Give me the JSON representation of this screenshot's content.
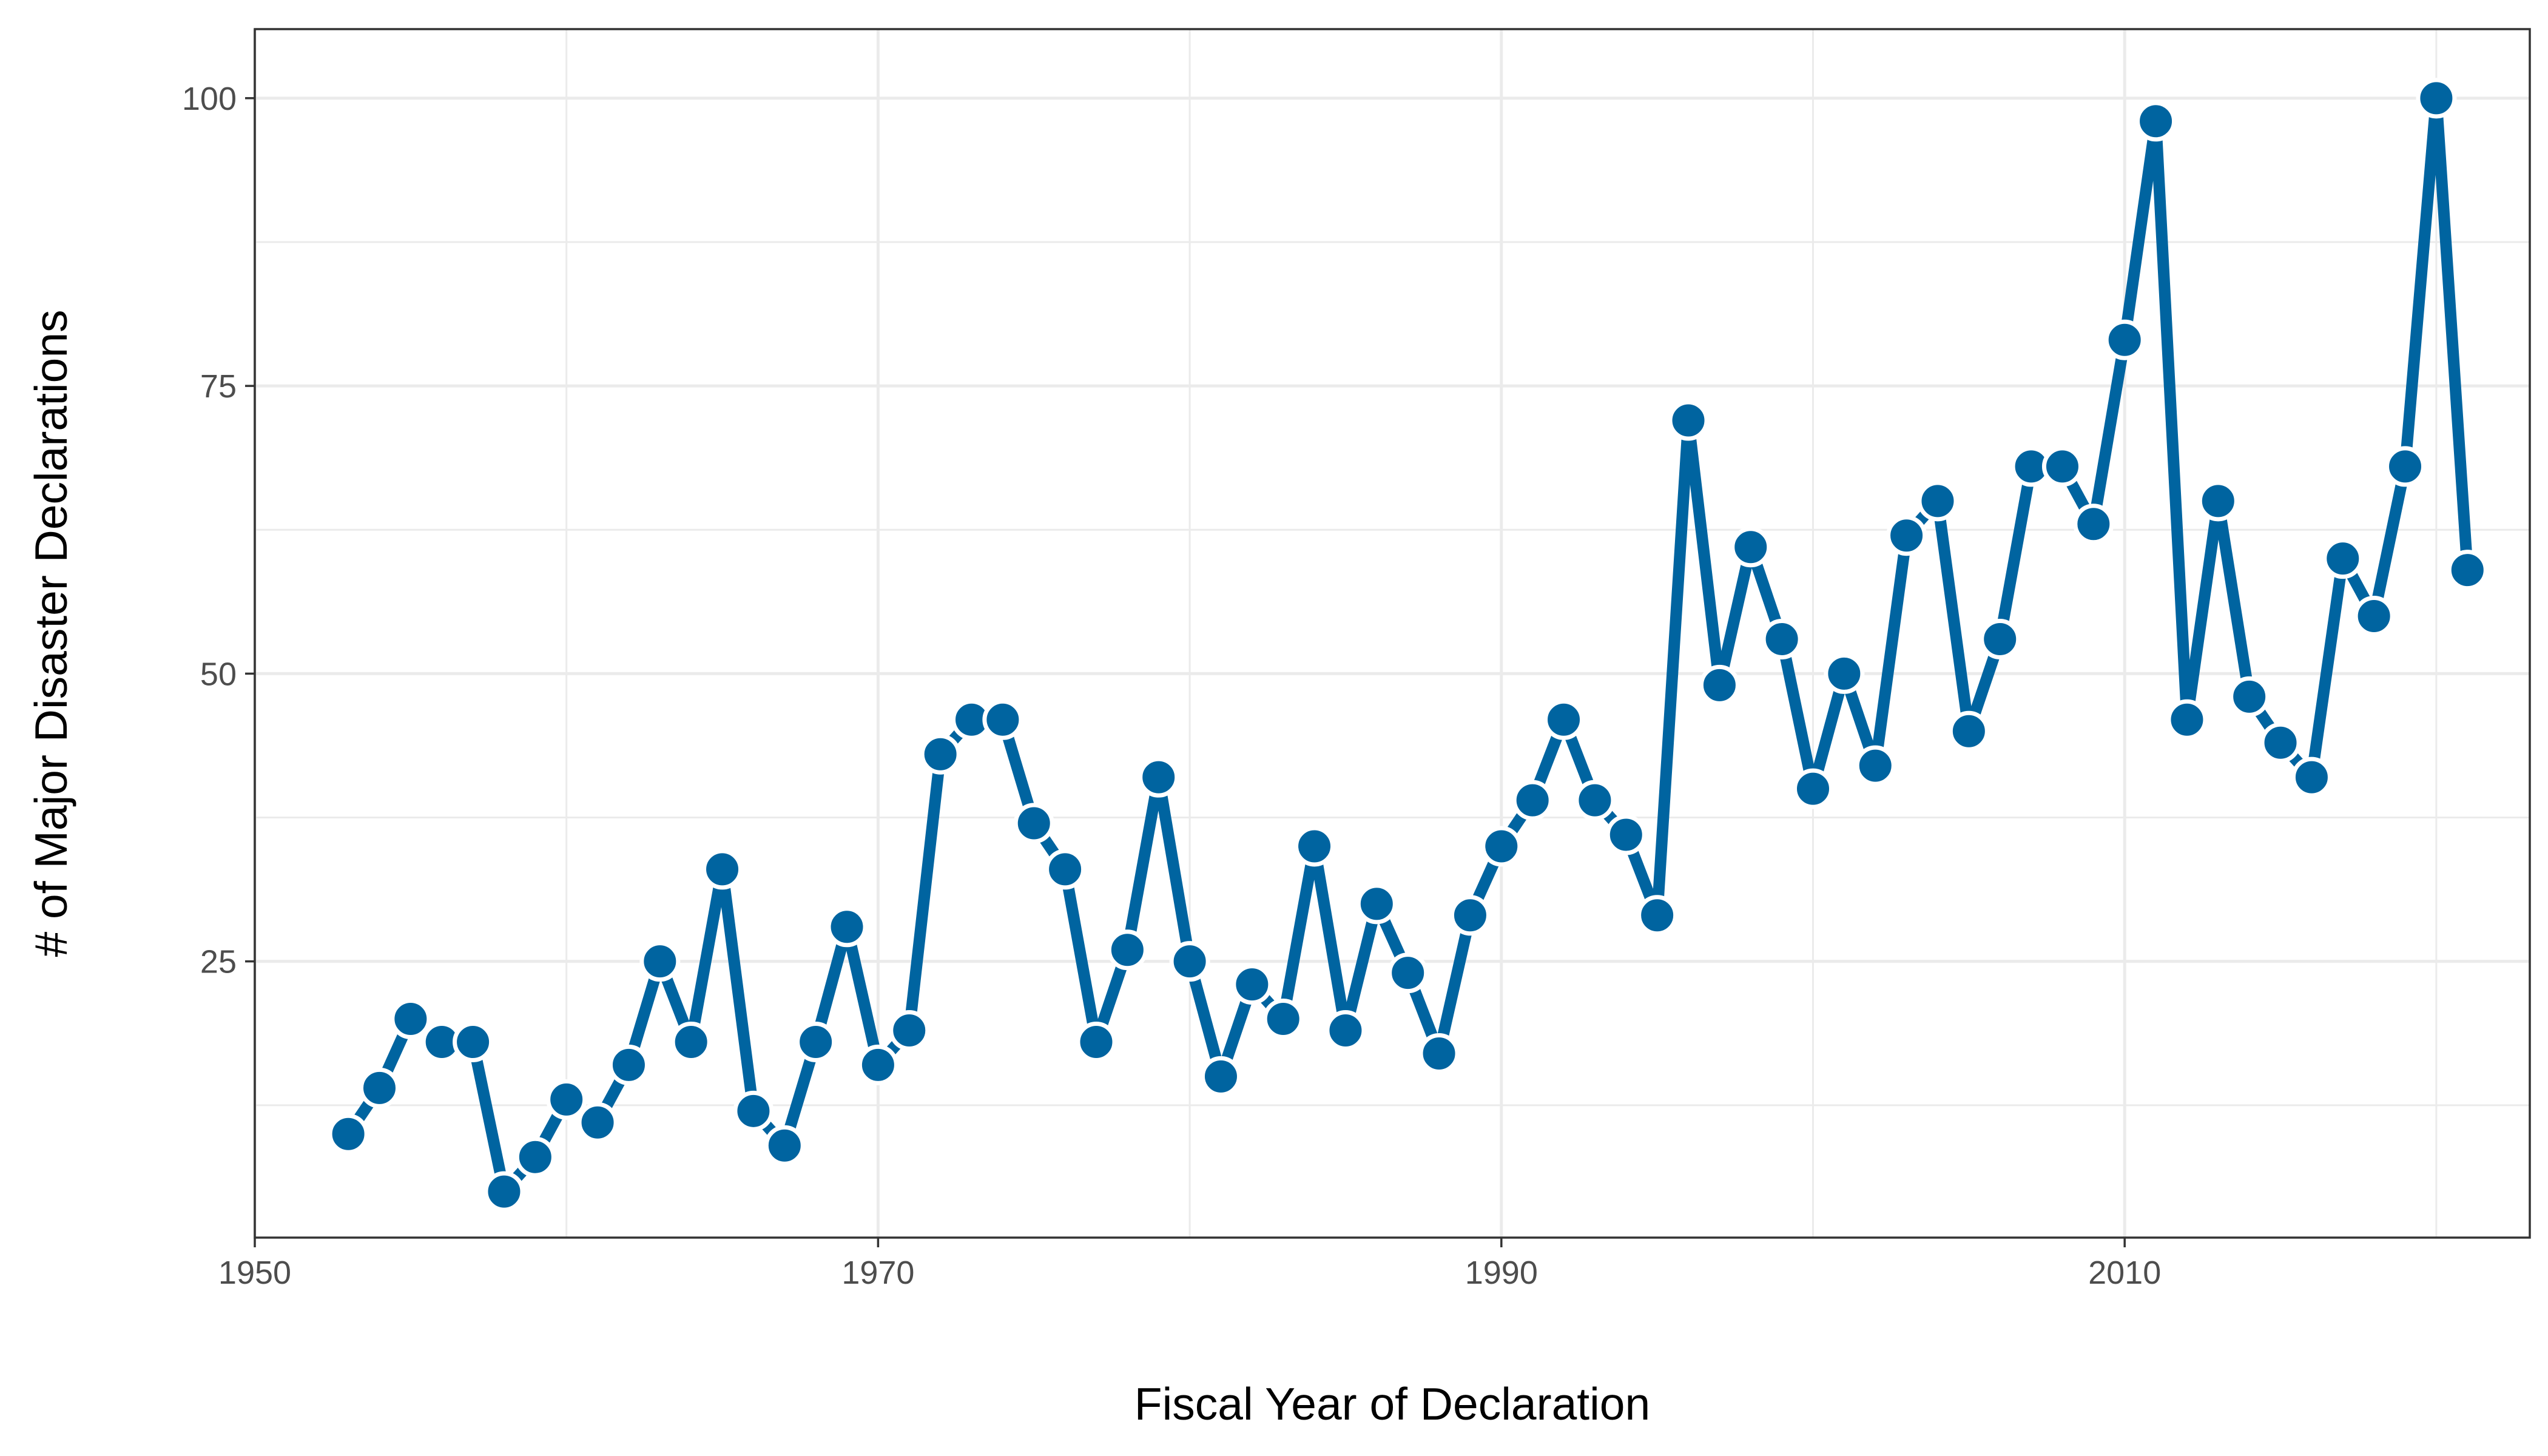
{
  "chart_data": {
    "type": "line",
    "xlabel": "Fiscal Year of Declaration",
    "ylabel": "# of Major Disaster Declarations",
    "xlim": [
      1950,
      2023
    ],
    "ylim": [
      1,
      106
    ],
    "x_ticks": [
      1950,
      1970,
      1990,
      2010
    ],
    "x_tick_labels": [
      "1950",
      "1970",
      "1990",
      "2010"
    ],
    "y_ticks": [
      25,
      50,
      75,
      100
    ],
    "y_tick_labels": [
      "25",
      "50",
      "75",
      "100"
    ],
    "grid": true,
    "line_color": "#0064A0",
    "series": [
      {
        "x": [
          1953,
          1954,
          1955,
          1956,
          1957,
          1958,
          1959,
          1960,
          1961,
          1962,
          1963,
          1964,
          1965,
          1966,
          1967,
          1968,
          1969,
          1970,
          1971,
          1972,
          1973,
          1974,
          1975,
          1976,
          1977,
          1978,
          1979,
          1980,
          1981,
          1982,
          1983,
          1984,
          1985,
          1986,
          1987,
          1988,
          1989,
          1990,
          1991,
          1992,
          1993,
          1994,
          1995,
          1996,
          1997,
          1998,
          1999,
          2000,
          2001,
          2002,
          2003,
          2004,
          2005,
          2006,
          2007,
          2008,
          2009,
          2010,
          2011,
          2012,
          2013,
          2014,
          2015,
          2016,
          2017,
          2018,
          2019,
          2020,
          2021
        ],
        "values": [
          10,
          14,
          20,
          18,
          18,
          5,
          8,
          13,
          11,
          16,
          25,
          18,
          33,
          12,
          9,
          18,
          28,
          16,
          19,
          43,
          46,
          46,
          37,
          33,
          18,
          26,
          41,
          25,
          15,
          23,
          20,
          35,
          19,
          30,
          24,
          17,
          29,
          35,
          39,
          46,
          39,
          36,
          29,
          72,
          49,
          61,
          53,
          40,
          50,
          42,
          62,
          65,
          45,
          53,
          68,
          68,
          63,
          79,
          98,
          46,
          65,
          48,
          44,
          41,
          60,
          55,
          68,
          100,
          59
        ]
      }
    ]
  }
}
